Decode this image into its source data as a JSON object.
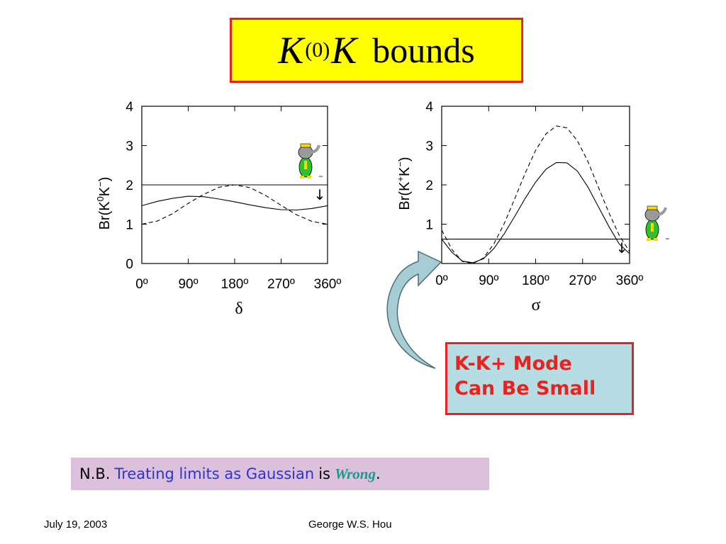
{
  "title": {
    "K1": "K",
    "sup": "(0)",
    "K2": "K",
    "words": "bounds"
  },
  "chart_data": [
    {
      "type": "line",
      "ylabel_base": "Br(K",
      "ylabel_sup1": "0",
      "ylabel_mid": "K",
      "ylabel_sup2": "−",
      "ylabel_end": ")",
      "xlabel": "δ",
      "xlim": [
        0,
        360
      ],
      "ylim": [
        0,
        4
      ],
      "x_tick_labels": [
        "0º",
        "90º",
        "180º",
        "270º",
        "360º"
      ],
      "y_tick_labels": [
        "0",
        "1",
        "2",
        "3",
        "4"
      ],
      "series": [
        {
          "style": "solid",
          "x": [
            0,
            30,
            60,
            90,
            120,
            150,
            180,
            210,
            240,
            270,
            300,
            330,
            360
          ],
          "y": [
            1.47,
            1.58,
            1.66,
            1.71,
            1.7,
            1.64,
            1.57,
            1.49,
            1.42,
            1.37,
            1.36,
            1.4,
            1.47
          ]
        },
        {
          "style": "dashed",
          "x": [
            0,
            30,
            60,
            90,
            120,
            150,
            180,
            210,
            240,
            270,
            300,
            330,
            360
          ],
          "y": [
            1.0,
            1.08,
            1.27,
            1.53,
            1.76,
            1.94,
            2.0,
            1.93,
            1.73,
            1.48,
            1.24,
            1.07,
            1.0
          ]
        },
        {
          "style": "limit",
          "x": [
            0,
            360
          ],
          "y": [
            2.0,
            2.0
          ]
        }
      ],
      "annotations": [
        "↓",
        "™"
      ]
    },
    {
      "type": "line",
      "ylabel_base": "Br(K",
      "ylabel_sup1": "+",
      "ylabel_mid": "K",
      "ylabel_sup2": "−",
      "ylabel_end": ")",
      "xlabel": "σ",
      "xlim": [
        0,
        360
      ],
      "ylim": [
        0,
        4
      ],
      "x_tick_labels": [
        "0º",
        "90º",
        "180º",
        "270º",
        "360º"
      ],
      "y_tick_labels": [
        "1",
        "2",
        "3",
        "4"
      ],
      "series": [
        {
          "style": "solid",
          "x": [
            0,
            20,
            40,
            60,
            80,
            100,
            120,
            140,
            160,
            180,
            200,
            220,
            240,
            260,
            280,
            300,
            320,
            340,
            360
          ],
          "y": [
            0.62,
            0.28,
            0.06,
            0.02,
            0.12,
            0.38,
            0.76,
            1.2,
            1.66,
            2.07,
            2.4,
            2.57,
            2.56,
            2.35,
            1.95,
            1.45,
            0.95,
            0.5,
            0.25
          ]
        },
        {
          "style": "dashed",
          "x": [
            0,
            20,
            40,
            60,
            80,
            100,
            120,
            140,
            160,
            180,
            200,
            220,
            240,
            260,
            280,
            300,
            320,
            340,
            360
          ],
          "y": [
            0.85,
            0.35,
            0.05,
            0.0,
            0.14,
            0.5,
            1.02,
            1.65,
            2.3,
            2.88,
            3.3,
            3.5,
            3.45,
            3.12,
            2.6,
            1.95,
            1.3,
            0.72,
            0.3
          ]
        },
        {
          "style": "limit",
          "x": [
            0,
            360
          ],
          "y": [
            0.62,
            0.62
          ]
        }
      ],
      "annotations": [
        "↓",
        "™"
      ]
    }
  ],
  "callout": {
    "line1": "K-K+ Mode",
    "line2": "Can Be Small"
  },
  "note": {
    "prefix": "N.B.",
    "highlight": "Treating limits as Gaussian",
    "middle": "is",
    "wrong": "Wrong",
    "suffix": "."
  },
  "footer": {
    "date": "July 19, 2003",
    "author": "George W.S. Hou"
  },
  "colors": {
    "title_bg": "#ffff00",
    "border_red": "#e8231f",
    "callout_bg": "#b6dde4",
    "note_bg": "#dcc0dc",
    "note_blue": "#2a35d8",
    "wrong_teal": "#1a9a8a",
    "arrow_fill": "#a7ccd3"
  }
}
